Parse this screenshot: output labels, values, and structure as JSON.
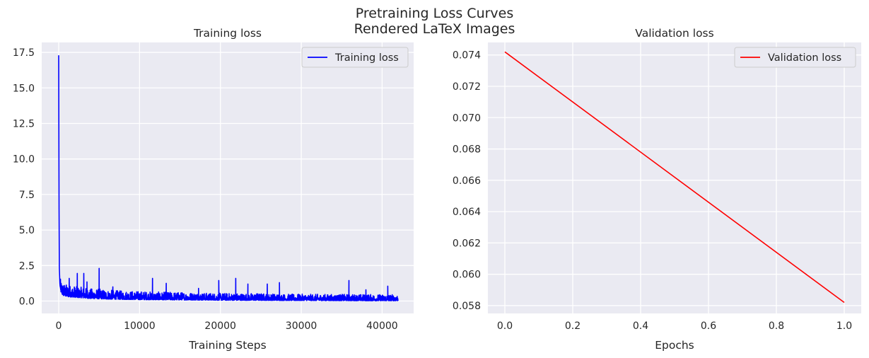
{
  "figure": {
    "suptitle_line1": "Pretraining Loss Curves",
    "suptitle_line2": "Rendered LaTeX Images"
  },
  "chart_data": [
    {
      "type": "line",
      "title": "Training loss",
      "xlabel": "Training Steps",
      "ylabel": "",
      "xlim": [
        -2100,
        43900
      ],
      "ylim": [
        -0.87,
        18.2
      ],
      "xticks": [
        0,
        10000,
        20000,
        30000,
        40000
      ],
      "xtick_labels": [
        "0",
        "10000",
        "20000",
        "30000",
        "40000"
      ],
      "yticks": [
        0.0,
        2.5,
        5.0,
        7.5,
        10.0,
        12.5,
        15.0,
        17.5
      ],
      "ytick_labels": [
        "0.0",
        "2.5",
        "5.0",
        "7.5",
        "10.0",
        "12.5",
        "15.0",
        "17.5"
      ],
      "grid": true,
      "legend": "top-right",
      "series": [
        {
          "name": "Training loss",
          "color": "#0000ff",
          "x": [
            0,
            40,
            80,
            150,
            250,
            400,
            600,
            900,
            1200,
            1600,
            2000,
            2500,
            3000,
            3500,
            4000,
            5000,
            6000,
            8000,
            10000,
            12000,
            15000,
            18000,
            20000,
            22000,
            25000,
            28000,
            30000,
            33000,
            36000,
            39000,
            42000
          ],
          "values": [
            17.3,
            6.5,
            2.3,
            1.2,
            0.8,
            0.6,
            0.5,
            0.45,
            0.42,
            0.4,
            0.38,
            0.36,
            0.34,
            0.32,
            0.3,
            0.28,
            0.26,
            0.24,
            0.22,
            0.21,
            0.2,
            0.19,
            0.18,
            0.17,
            0.17,
            0.16,
            0.16,
            0.15,
            0.15,
            0.14,
            0.14
          ],
          "noise_amplitude": [
            0,
            0,
            0,
            0.6,
            0.8,
            0.9,
            0.9,
            0.85,
            0.85,
            0.8,
            0.8,
            0.75,
            0.75,
            0.7,
            0.7,
            0.7,
            0.65,
            0.6,
            0.6,
            0.55,
            0.55,
            0.5,
            0.5,
            0.5,
            0.5,
            0.45,
            0.45,
            0.45,
            0.45,
            0.45,
            0.45
          ],
          "spikes": [
            [
              1300,
              1.6
            ],
            [
              2300,
              1.95
            ],
            [
              3100,
              1.95
            ],
            [
              3500,
              1.35
            ],
            [
              5000,
              2.3
            ],
            [
              6700,
              1.0
            ],
            [
              11600,
              1.6
            ],
            [
              13300,
              1.25
            ],
            [
              17300,
              0.9
            ],
            [
              19800,
              1.45
            ],
            [
              21900,
              1.6
            ],
            [
              23400,
              1.2
            ],
            [
              25800,
              1.2
            ],
            [
              27300,
              1.3
            ],
            [
              35900,
              1.45
            ],
            [
              38000,
              0.8
            ],
            [
              40700,
              1.05
            ]
          ]
        }
      ]
    },
    {
      "type": "line",
      "title": "Validation loss",
      "xlabel": "Epochs",
      "ylabel": "",
      "xlim": [
        -0.05,
        1.05
      ],
      "ylim": [
        0.0575,
        0.0748
      ],
      "xticks": [
        0.0,
        0.2,
        0.4,
        0.6,
        0.8,
        1.0
      ],
      "xtick_labels": [
        "0.0",
        "0.2",
        "0.4",
        "0.6",
        "0.8",
        "1.0"
      ],
      "yticks": [
        0.058,
        0.06,
        0.062,
        0.064,
        0.066,
        0.068,
        0.07,
        0.072,
        0.074
      ],
      "ytick_labels": [
        "0.058",
        "0.060",
        "0.062",
        "0.064",
        "0.066",
        "0.068",
        "0.070",
        "0.072",
        "0.074"
      ],
      "grid": true,
      "legend": "top-right",
      "series": [
        {
          "name": "Validation loss",
          "color": "#ff0000",
          "x": [
            0.0,
            1.0
          ],
          "values": [
            0.0742,
            0.0582
          ]
        }
      ]
    }
  ]
}
